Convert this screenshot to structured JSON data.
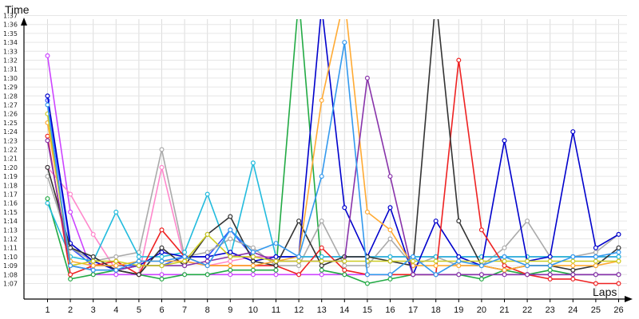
{
  "chart_data": {
    "type": "line",
    "title": "",
    "ylabel": "Time",
    "xlabel": "Laps",
    "x": [
      1,
      2,
      3,
      4,
      5,
      6,
      7,
      8,
      9,
      10,
      11,
      12,
      13,
      14,
      15,
      16,
      17,
      18,
      19,
      20,
      21,
      22,
      23,
      24,
      25,
      26
    ],
    "y_ticks": [
      "1:07",
      "1:08",
      "1:09",
      "1:10",
      "1:11",
      "1:12",
      "1:13",
      "1:14",
      "1:15",
      "1:16",
      "1:17",
      "1:18",
      "1:19",
      "1:20",
      "1:21",
      "1:22",
      "1:23",
      "1:24",
      "1:25",
      "1:26",
      "1:27",
      "1:28",
      "1:29",
      "1:30",
      "1:31",
      "1:32",
      "1:33",
      "1:34",
      "1:35",
      "1:36",
      "1:37"
    ],
    "ylim_seconds": [
      66,
      99
    ],
    "grid": true,
    "legend": "none",
    "series": [
      {
        "color": "#cc44ff",
        "values": [
          92.5,
          75,
          68,
          68,
          68,
          68,
          68,
          68,
          68,
          68,
          68,
          68,
          68,
          68,
          68,
          68,
          68,
          68,
          68,
          68,
          68,
          68,
          68,
          68,
          68,
          68
        ]
      },
      {
        "color": "#3355ff",
        "values": [
          87.5,
          71,
          69,
          69,
          69,
          69,
          70,
          70,
          73,
          70,
          70,
          70,
          70,
          70,
          70,
          70,
          70,
          70,
          70,
          70,
          70,
          70,
          70,
          70,
          70,
          70
        ]
      },
      {
        "color": "#ff88cc",
        "values": [
          80,
          77,
          72.5,
          68.5,
          68,
          80,
          69.5,
          69,
          69.5,
          70,
          70,
          70,
          70,
          70,
          70,
          70,
          70,
          70,
          70,
          70,
          70,
          70,
          70,
          70,
          70,
          70
        ]
      },
      {
        "color": "#22aa44",
        "values": [
          76.5,
          67.5,
          68,
          68.5,
          68,
          67.5,
          68,
          68,
          68.5,
          68.5,
          68.5,
          99,
          68.5,
          68,
          67,
          67.5,
          68,
          68,
          68,
          67.5,
          68.5,
          68,
          68.5,
          68,
          68,
          68
        ]
      },
      {
        "color": "#aaaaaa",
        "values": [
          79,
          71,
          69.5,
          70,
          70.5,
          82,
          70,
          70.5,
          72,
          71,
          69,
          69,
          74,
          69,
          69,
          72,
          69,
          70,
          69,
          69,
          71,
          74,
          70,
          70,
          70.5,
          72.5
        ]
      },
      {
        "color": "#22bbdd",
        "values": [
          76,
          70,
          69.5,
          75,
          70,
          70,
          70.5,
          77,
          70,
          80.5,
          70,
          70,
          70,
          70,
          70,
          70,
          70,
          70,
          70,
          70,
          70,
          70,
          70,
          70,
          70,
          70
        ]
      },
      {
        "color": "#0000cc",
        "values": [
          88,
          71.5,
          69.5,
          68.5,
          69,
          70.5,
          70,
          70,
          70.5,
          69.5,
          70,
          70,
          98,
          75.5,
          70,
          75.5,
          68,
          74,
          70,
          69,
          83,
          69.5,
          70,
          84,
          71,
          72.5
        ]
      },
      {
        "color": "#ee2222",
        "values": [
          83.5,
          68,
          69,
          69.5,
          68,
          73,
          70,
          69,
          69,
          69,
          69,
          68,
          71,
          68.5,
          68,
          68,
          68,
          68,
          92,
          73,
          69,
          68,
          67.5,
          67.5,
          67,
          67
        ]
      },
      {
        "color": "#333333",
        "values": [
          80,
          71,
          70,
          68.5,
          68,
          71,
          69,
          72.5,
          74.5,
          69.5,
          69,
          74,
          69,
          70,
          70,
          69.5,
          69,
          99,
          74,
          69,
          68.5,
          69,
          69,
          68.5,
          69,
          71
        ]
      },
      {
        "color": "#ffaa33",
        "values": [
          85,
          69.5,
          69,
          69,
          69.5,
          69.5,
          69.5,
          69,
          69,
          69,
          69.5,
          70,
          87.5,
          99,
          75,
          73,
          69,
          69,
          69,
          69,
          68.5,
          69,
          69,
          69,
          69,
          69.5
        ]
      },
      {
        "color": "#8833aa",
        "values": [
          83,
          69,
          68.5,
          68.5,
          69,
          69,
          69,
          69.5,
          70,
          70.5,
          69.5,
          69.5,
          69.5,
          69.5,
          90,
          79,
          68,
          68,
          68,
          68,
          68,
          68,
          68,
          68,
          68,
          68
        ]
      },
      {
        "color": "#cccc22",
        "values": [
          86,
          69,
          69.5,
          69.5,
          69,
          69,
          69.5,
          72.5,
          70,
          70,
          69.5,
          69.5,
          69.5,
          69.5,
          69.5,
          69.5,
          69.5,
          69.5,
          69.5,
          69.5,
          69.5,
          69.5,
          69.5,
          69.5,
          69.5,
          69.5
        ]
      },
      {
        "color": "#3399ee",
        "values": [
          87,
          69,
          68.5,
          68.5,
          69.5,
          69.5,
          70,
          69,
          73,
          70.5,
          71.5,
          70,
          79,
          94,
          68,
          68,
          70,
          68,
          69.5,
          69,
          70,
          69,
          69,
          70,
          70,
          70.5
        ]
      }
    ]
  }
}
